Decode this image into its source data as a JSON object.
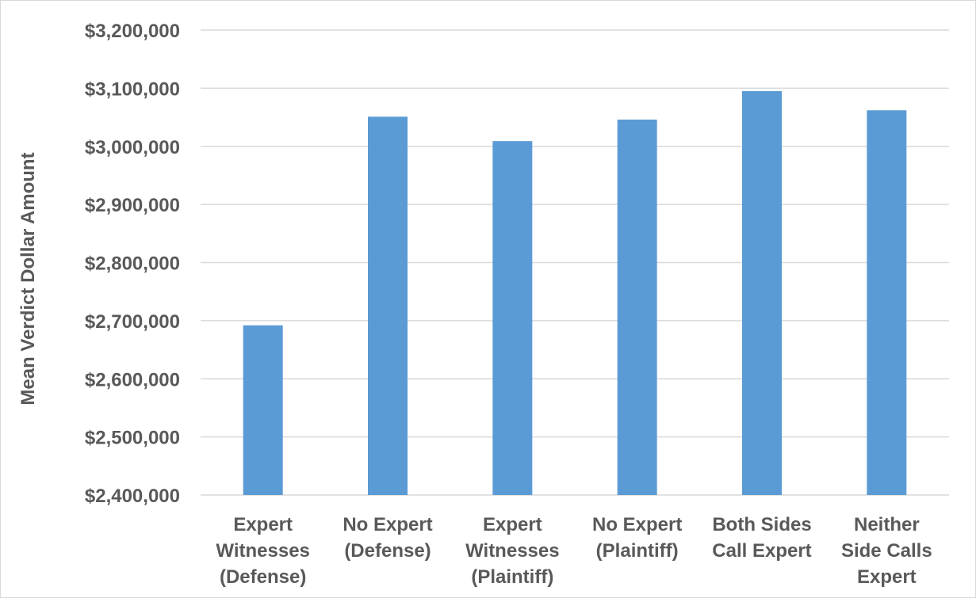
{
  "chart_data": {
    "type": "bar",
    "categories": [
      [
        "Expert",
        "Witnesses",
        "(Defense)"
      ],
      [
        "No Expert",
        "(Defense)"
      ],
      [
        "Expert",
        "Witnesses",
        "(Plaintiff)"
      ],
      [
        "No Expert",
        "(Plaintiff)"
      ],
      [
        "Both Sides",
        "Call Expert"
      ],
      [
        "Neither",
        "Side Calls",
        "Expert"
      ]
    ],
    "values": [
      2692000,
      3051000,
      3009000,
      3046000,
      3095000,
      3062000
    ],
    "title": "",
    "xlabel": "",
    "ylabel": "Mean Verdict Dollar Amount",
    "ylim": [
      2400000,
      3200000
    ],
    "yticks": [
      2400000,
      2500000,
      2600000,
      2700000,
      2800000,
      2900000,
      3000000,
      3100000,
      3200000
    ],
    "ytick_labels": [
      "$2,400,000",
      "$2,500,000",
      "$2,600,000",
      "$2,700,000",
      "$2,800,000",
      "$2,900,000",
      "$3,000,000",
      "$3,100,000",
      "$3,200,000"
    ],
    "grid": true,
    "legend": "none",
    "colors": {
      "bar": "#5b9bd5",
      "grid": "#d9d9d9",
      "text": "#595959"
    }
  }
}
